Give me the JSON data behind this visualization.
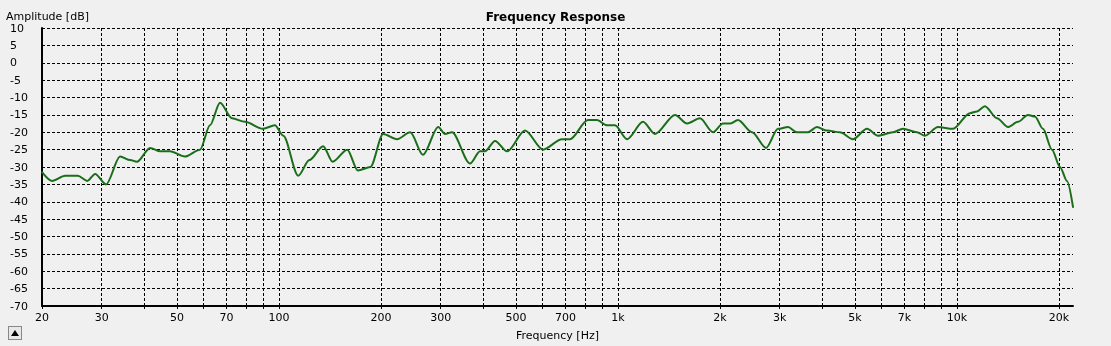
{
  "chart_data": {
    "type": "line",
    "title": "Frequency Response",
    "xlabel": "Frequency [Hz]",
    "ylabel": "Amplitude [dB]",
    "log": "x",
    "grid": true,
    "marker": "none",
    "line_style": "solid",
    "xlim": [
      20,
      22000
    ],
    "ylim": [
      -70,
      10
    ],
    "xticks": [
      20,
      30,
      {
        "value": 40,
        "label": null
      },
      50,
      {
        "value": 60,
        "label": null
      },
      70,
      {
        "value": 80,
        "label": null
      },
      {
        "value": 90,
        "label": null
      },
      100,
      200,
      300,
      {
        "value": 400,
        "label": null
      },
      500,
      {
        "value": 600,
        "label": null
      },
      700,
      {
        "value": 800,
        "label": null
      },
      {
        "value": 900,
        "label": null
      },
      {
        "value": 1000,
        "label": "1k"
      },
      {
        "value": 2000,
        "label": "2k"
      },
      {
        "value": 3000,
        "label": "3k"
      },
      {
        "value": 4000,
        "label": null
      },
      {
        "value": 5000,
        "label": "5k"
      },
      {
        "value": 6000,
        "label": null
      },
      {
        "value": 7000,
        "label": "7k"
      },
      {
        "value": 8000,
        "label": null
      },
      {
        "value": 9000,
        "label": null
      },
      {
        "value": 10000,
        "label": "10k"
      },
      {
        "value": 20000,
        "label": "20k"
      }
    ],
    "yticks": [
      -70,
      -65,
      -60,
      -55,
      -50,
      -45,
      -40,
      -35,
      -30,
      -25,
      -20,
      -15,
      -10,
      -5,
      0,
      5,
      10
    ],
    "series": [
      {
        "color": "#1a6e1a",
        "x": [
          20,
          21.4,
          23.4,
          25.5,
          27.2,
          28.7,
          30.9,
          34,
          36.4,
          38.1,
          41.7,
          44.6,
          47.7,
          52.8,
          58.5,
          62.6,
          67,
          72.7,
          79.4,
          89.7,
          97.3,
          103,
          114,
          123,
          135,
          144,
          159,
          171,
          186,
          203,
          223,
          244,
          266,
          295,
          309,
          324,
          366,
          392,
          405,
          434,
          471,
          532,
          601,
          684,
          722,
          816,
          867,
          928,
          980,
          1064,
          1186,
          1286,
          1474,
          1599,
          1746,
          1907,
          2041,
          2140,
          2260,
          2486,
          2734,
          2966,
          3175,
          3373,
          3636,
          3864,
          4136,
          4518,
          4936,
          5428,
          5850,
          6476,
          6932,
          7622,
          8048,
          8792,
          9736,
          10930,
          11460,
          12100,
          13130,
          14150,
          15140,
          16200,
          16990,
          17940,
          19070,
          20140,
          21120,
          22000
        ],
        "values": [
          -31.5,
          -34,
          -32.5,
          -32.5,
          -34,
          -32,
          -35,
          -27,
          -28,
          -28.5,
          -24.5,
          -25.5,
          -25.5,
          -27,
          -25,
          -18,
          -11.5,
          -16,
          -17,
          -19,
          -18,
          -21,
          -32.5,
          -28,
          -24,
          -28.5,
          -25,
          -31,
          -30,
          -20.5,
          -22,
          -20,
          -26.5,
          -18.5,
          -20.5,
          -20,
          -29,
          -25.5,
          -25.5,
          -22.5,
          -25.5,
          -19.5,
          -25,
          -22,
          -22,
          -16.5,
          -16.5,
          -18,
          -18,
          -22,
          -17,
          -20.5,
          -15,
          -17.5,
          -16,
          -20,
          -17.5,
          -17.5,
          -16.5,
          -20,
          -24.5,
          -19,
          -18.5,
          -20,
          -20,
          -18.5,
          -19.5,
          -20,
          -22,
          -19,
          -21,
          -20,
          -19,
          -20,
          -21,
          -18.5,
          -19,
          -14.5,
          -14,
          -12.5,
          -16,
          -18.5,
          -17,
          -15,
          -15.5,
          -19,
          -25,
          -30,
          -34,
          -41.5
        ]
      }
    ]
  }
}
